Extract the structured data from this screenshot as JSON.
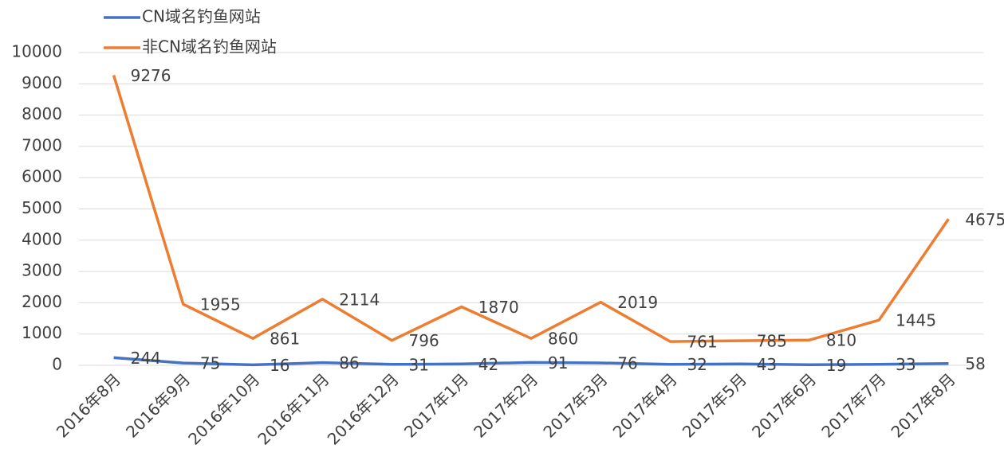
{
  "chart_data": {
    "type": "line",
    "categories": [
      "2016年8月",
      "2016年9月",
      "2016年10月",
      "2016年11月",
      "2016年12月",
      "2017年1月",
      "2017年2月",
      "2017年3月",
      "2017年4月",
      "2017年5月",
      "2017年6月",
      "2017年7月",
      "2017年8月"
    ],
    "series": [
      {
        "name": "CN域名钓鱼网站",
        "color": "#4472c4",
        "values": [
          244,
          75,
          16,
          86,
          31,
          42,
          91,
          76,
          32,
          43,
          19,
          33,
          58
        ]
      },
      {
        "name": "非CN域名钓鱼网站",
        "color": "#ed7d31",
        "values": [
          9276,
          1955,
          861,
          2114,
          796,
          1870,
          860,
          2019,
          761,
          785,
          810,
          1445,
          4675
        ]
      }
    ],
    "ylim": [
      0,
      10000
    ],
    "yticks": [
      0,
      1000,
      2000,
      3000,
      4000,
      5000,
      6000,
      7000,
      8000,
      9000,
      10000
    ],
    "grid": true
  }
}
